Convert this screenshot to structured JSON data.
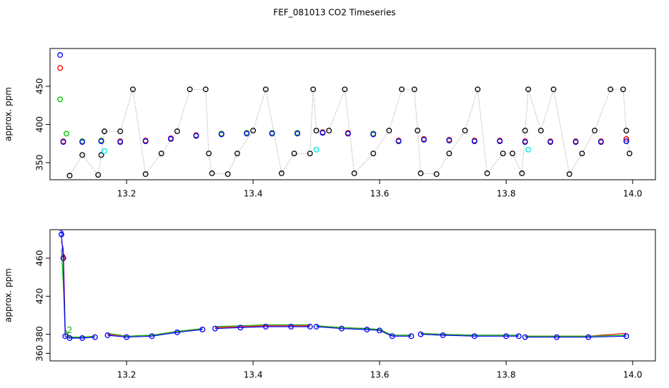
{
  "chart_data": [
    {
      "type": "scatter",
      "title": "FEF_081013  CO2 Timeseries",
      "y_label": "approx. ppm",
      "xlim": [
        13.079,
        14.036
      ],
      "ylim": [
        327.6,
        499.5
      ],
      "xticks": [
        13.2,
        13.4,
        13.6,
        13.8,
        {
          "value": 14,
          "label": "14.0"
        }
      ],
      "yticks": [
        350,
        400,
        450
      ],
      "series": [
        {
          "color": "#000000",
          "mode": "points",
          "connect": "dotted",
          "x": [
            13.11,
            13.13,
            13.155,
            13.16,
            13.165,
            13.19,
            13.21,
            13.23,
            13.255,
            13.28,
            13.3,
            13.325,
            13.33,
            13.335,
            13.36,
            13.375,
            13.4,
            13.42,
            13.445,
            13.465,
            13.49,
            13.495,
            13.5,
            13.52,
            13.545,
            13.56,
            13.59,
            13.615,
            13.635,
            13.655,
            13.66,
            13.665,
            13.69,
            13.71,
            13.735,
            13.755,
            13.77,
            13.795,
            13.81,
            13.825,
            13.83,
            13.835,
            13.855,
            13.875,
            13.9,
            13.92,
            13.94,
            13.965,
            13.985,
            13.99,
            13.995
          ],
          "values": [
            333,
            360,
            334,
            360,
            391,
            391,
            446,
            335,
            362,
            391,
            446,
            446,
            362,
            336,
            335,
            362,
            392,
            446,
            336,
            362,
            362,
            446,
            392,
            392,
            446,
            336,
            362,
            392,
            446,
            446,
            392,
            336,
            335,
            362,
            392,
            446,
            336,
            362,
            362,
            336,
            392,
            446,
            392,
            446,
            335,
            362,
            392,
            446,
            446,
            392,
            362
          ]
        },
        {
          "color": "#ff0000",
          "mode": "points",
          "x": [
            13.095,
            13.1,
            13.13,
            13.16,
            13.19,
            13.23,
            13.27,
            13.31,
            13.35,
            13.39,
            13.43,
            13.47,
            13.51,
            13.55,
            13.59,
            13.63,
            13.67,
            13.71,
            13.75,
            13.79,
            13.83,
            13.87,
            13.91,
            13.95,
            13.99
          ],
          "values": [
            474,
            378,
            378,
            379,
            378,
            379,
            382,
            386,
            388,
            389,
            389,
            389,
            390,
            389,
            388,
            379,
            381,
            380,
            379,
            379,
            378,
            378,
            378,
            378,
            381
          ]
        },
        {
          "color": "#00bb00",
          "mode": "points",
          "x": [
            13.095,
            13.105,
            13.13,
            13.16,
            13.19,
            13.23,
            13.27,
            13.31,
            13.35,
            13.39,
            13.43,
            13.47,
            13.51,
            13.55,
            13.59,
            13.63,
            13.67,
            13.71,
            13.75,
            13.79,
            13.83,
            13.87,
            13.91,
            13.95,
            13.99
          ],
          "values": [
            433,
            388,
            378,
            379,
            377,
            378,
            381,
            385,
            388,
            389,
            389,
            389,
            389,
            388,
            388,
            378,
            380,
            379,
            378,
            378,
            377,
            377,
            377,
            377,
            378
          ]
        },
        {
          "color": "#0000ff",
          "mode": "points",
          "x": [
            13.095,
            13.1,
            13.13,
            13.16,
            13.19,
            13.23,
            13.27,
            13.31,
            13.35,
            13.39,
            13.43,
            13.47,
            13.51,
            13.55,
            13.59,
            13.63,
            13.67,
            13.71,
            13.75,
            13.79,
            13.83,
            13.87,
            13.91,
            13.95,
            13.99
          ],
          "values": [
            491,
            377,
            377,
            378,
            377,
            378,
            381,
            385,
            387,
            388,
            388,
            388,
            389,
            388,
            387,
            378,
            380,
            379,
            378,
            378,
            377,
            377,
            377,
            377,
            378
          ]
        },
        {
          "color": "#00e5e5",
          "mode": "points",
          "x": [
            13.165,
            13.5,
            13.835
          ],
          "values": [
            365,
            367,
            367
          ]
        }
      ]
    },
    {
      "type": "line",
      "y_label": "approx. ppm",
      "xlim": [
        13.079,
        14.036
      ],
      "ylim": [
        352,
        490
      ],
      "xticks": [
        13.2,
        13.4,
        13.6,
        13.8,
        {
          "value": 14,
          "label": "14.0"
        }
      ],
      "yticks": [
        360,
        380,
        420,
        460
      ],
      "x": [
        13.097,
        13.1,
        13.103,
        13.11,
        13.13,
        13.15,
        13.16,
        13.17,
        13.2,
        13.24,
        13.28,
        13.32,
        13.33,
        13.34,
        13.38,
        13.42,
        13.46,
        13.49,
        13.495,
        13.5,
        13.54,
        13.58,
        13.6,
        13.62,
        13.65,
        13.658,
        13.665,
        13.7,
        13.75,
        13.8,
        13.82,
        13.823,
        13.83,
        13.88,
        13.93,
        13.99
      ],
      "series": [
        {
          "color": "#ff0000",
          "markers": false,
          "values": [
            478,
            470,
            385,
            377,
            377,
            378,
            null,
            380,
            378,
            379,
            383,
            386,
            null,
            387,
            388,
            389,
            389,
            389,
            null,
            389,
            387,
            386,
            385,
            379,
            379,
            null,
            381,
            380,
            379,
            379,
            379,
            null,
            378,
            378,
            378,
            381
          ]
        },
        {
          "color": "#00bb00",
          "markers": false,
          "values": [
            470,
            432,
            384,
            377,
            377,
            378,
            null,
            381,
            378,
            379,
            383,
            386,
            null,
            388,
            389,
            390,
            390,
            390,
            null,
            389,
            387,
            386,
            385,
            379,
            379,
            null,
            381,
            380,
            379,
            379,
            379,
            null,
            378,
            378,
            378,
            379
          ]
        },
        {
          "color": "#0000ff",
          "markers": true,
          "values": [
            485,
            460,
            378,
            376,
            376,
            377,
            null,
            379,
            377,
            378,
            382,
            385,
            null,
            386,
            387,
            388,
            388,
            388,
            null,
            388,
            386,
            385,
            384,
            378,
            378,
            null,
            380,
            379,
            378,
            378,
            378,
            null,
            377,
            377,
            377,
            378
          ]
        }
      ],
      "annotations": [
        {
          "text": "3",
          "x": 13.097,
          "y": 485,
          "color": "#0000ff"
        },
        {
          "text": "3",
          "x": 13.1,
          "y": 460,
          "color": "#880044"
        },
        {
          "text": "2",
          "x": 13.11,
          "y": 384,
          "color": "#00bb00"
        }
      ]
    }
  ]
}
